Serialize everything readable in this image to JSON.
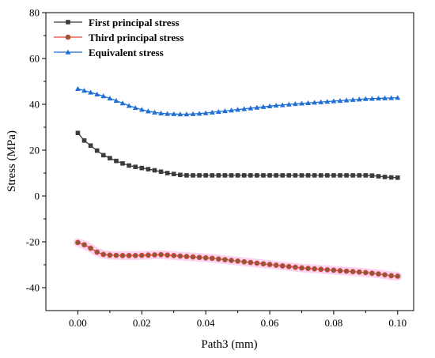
{
  "colors": {
    "first": "#3c3c3c",
    "third": "#e8443a",
    "third_marker_fill": "#8a5a3a",
    "equivalent": "#1f6fd6",
    "band": "#f6b8e8"
  },
  "chart_data": {
    "type": "line",
    "title": "",
    "xlabel": "Path3 (mm)",
    "ylabel": "Stress (MPa)",
    "xlim": [
      -0.01,
      0.105
    ],
    "ylim": [
      -50,
      80
    ],
    "xticks": [
      0.0,
      0.02,
      0.04,
      0.06,
      0.08,
      0.1
    ],
    "xtick_labels": [
      "0.00",
      "0.02",
      "0.04",
      "0.06",
      "0.08",
      "0.10"
    ],
    "yticks": [
      -40,
      -20,
      0,
      20,
      40,
      60,
      80
    ],
    "ytick_labels": [
      "-40",
      "-20",
      "0",
      "20",
      "40",
      "60",
      "80"
    ],
    "grid": false,
    "legend_position": "top-left",
    "x": [
      0,
      0.002,
      0.004,
      0.006,
      0.008,
      0.01,
      0.012,
      0.014,
      0.016,
      0.018,
      0.02,
      0.022,
      0.024,
      0.026,
      0.028,
      0.03,
      0.032,
      0.034,
      0.036,
      0.038,
      0.04,
      0.042,
      0.044,
      0.046,
      0.048,
      0.05,
      0.052,
      0.054,
      0.056,
      0.058,
      0.06,
      0.062,
      0.064,
      0.066,
      0.068,
      0.07,
      0.072,
      0.074,
      0.076,
      0.078,
      0.08,
      0.082,
      0.084,
      0.086,
      0.088,
      0.09,
      0.092,
      0.094,
      0.096,
      0.098,
      0.1
    ],
    "series": [
      {
        "name": "First principal stress",
        "marker": "square",
        "values": [
          27.5,
          24.2,
          22.0,
          19.8,
          17.8,
          16.5,
          15.3,
          14.2,
          13.3,
          12.7,
          12.2,
          11.7,
          11.2,
          10.6,
          10.0,
          9.6,
          9.2,
          9.0,
          9.0,
          9.0,
          9.0,
          9.0,
          9.0,
          9.0,
          9.0,
          9.0,
          9.0,
          9.0,
          9.0,
          9.0,
          9.0,
          9.0,
          9.0,
          9.0,
          9.0,
          9.0,
          9.0,
          9.0,
          9.0,
          9.0,
          9.0,
          9.0,
          9.0,
          9.0,
          9.0,
          9.0,
          8.9,
          8.6,
          8.3,
          8.1,
          8.0
        ]
      },
      {
        "name": "Third principal stress",
        "marker": "circle",
        "values": [
          -20.3,
          -21.3,
          -22.8,
          -24.5,
          -25.5,
          -25.8,
          -25.9,
          -26.0,
          -26.0,
          -26.0,
          -25.9,
          -25.8,
          -25.7,
          -25.6,
          -25.8,
          -26.0,
          -26.2,
          -26.4,
          -26.6,
          -26.8,
          -27.0,
          -27.2,
          -27.5,
          -27.8,
          -28.1,
          -28.4,
          -28.7,
          -29.0,
          -29.3,
          -29.6,
          -29.9,
          -30.2,
          -30.5,
          -30.8,
          -31.1,
          -31.4,
          -31.6,
          -31.8,
          -32.0,
          -32.2,
          -32.4,
          -32.6,
          -32.8,
          -33.0,
          -33.2,
          -33.4,
          -33.7,
          -34.0,
          -34.4,
          -34.8,
          -35.0
        ]
      },
      {
        "name": "Equivalent stress",
        "marker": "triangle",
        "values": [
          46.8,
          46.0,
          45.2,
          44.4,
          43.6,
          42.6,
          41.6,
          40.5,
          39.4,
          38.5,
          37.7,
          37.0,
          36.5,
          36.1,
          35.9,
          35.8,
          35.7,
          35.7,
          35.8,
          36.0,
          36.2,
          36.5,
          36.8,
          37.1,
          37.4,
          37.7,
          38.0,
          38.3,
          38.6,
          38.9,
          39.2,
          39.5,
          39.7,
          40.0,
          40.2,
          40.4,
          40.6,
          40.8,
          41.0,
          41.2,
          41.4,
          41.6,
          41.8,
          42.0,
          42.2,
          42.4,
          42.5,
          42.6,
          42.7,
          42.8,
          42.9
        ]
      }
    ]
  }
}
